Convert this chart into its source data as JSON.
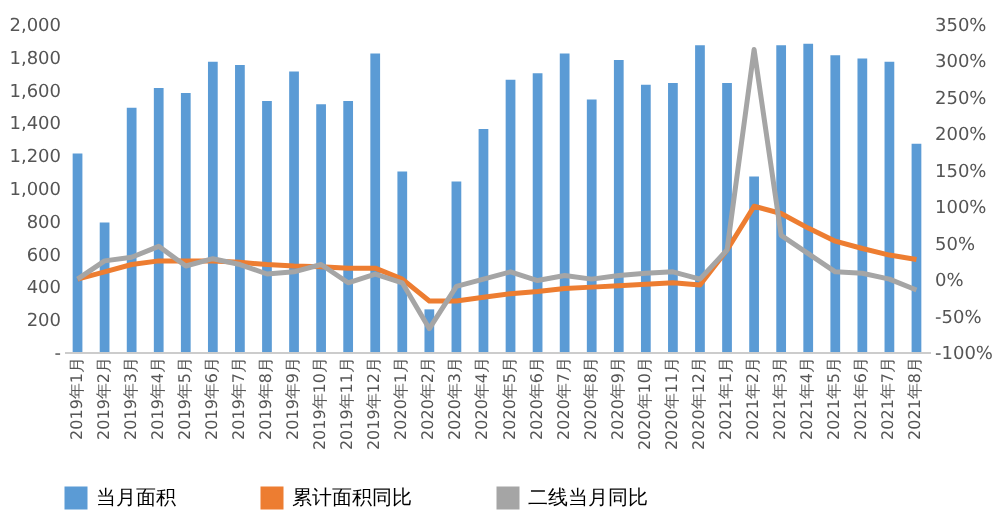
{
  "chart_data": {
    "type": "bar",
    "categories": [
      "2019年1月",
      "2019年2月",
      "2019年3月",
      "2019年4月",
      "2019年5月",
      "2019年6月",
      "2019年7月",
      "2019年8月",
      "2019年9月",
      "2019年10月",
      "2019年11月",
      "2019年12月",
      "2020年1月",
      "2020年2月",
      "2020年3月",
      "2020年4月",
      "2020年5月",
      "2020年6月",
      "2020年7月",
      "2020年8月",
      "2020年9月",
      "2020年10月",
      "2020年11月",
      "2020年12月",
      "2021年1月",
      "2021年2月",
      "2021年3月",
      "2021年4月",
      "2021年5月",
      "2021年6月",
      "2021年7月",
      "2021年8月"
    ],
    "series": [
      {
        "name": "当月面积",
        "color": "#5b9bd5",
        "values": [
          1210,
          790,
          1490,
          1610,
          1580,
          1770,
          1750,
          1530,
          1710,
          1510,
          1530,
          1820,
          1100,
          260,
          1040,
          1360,
          1660,
          1700,
          1820,
          1540,
          1780,
          1630,
          1640,
          1870,
          1640,
          1070,
          1870,
          1880,
          1810,
          1790,
          1770,
          1270
        ]
      },
      {
        "name": "累计面积同比",
        "type": "line",
        "axis": "y2",
        "color": "#ed7d31",
        "values": [
          0,
          10,
          20,
          25,
          25,
          25,
          23,
          20,
          18,
          17,
          15,
          15,
          0,
          -30,
          -30,
          -25,
          -20,
          -17,
          -13,
          -11,
          -9,
          -7,
          -5,
          -8,
          40,
          100,
          90,
          70,
          52,
          42,
          33,
          27
        ]
      },
      {
        "name": "二线当月同比",
        "type": "line",
        "axis": "y2",
        "color": "#a5a5a5",
        "values": [
          0,
          25,
          30,
          45,
          18,
          28,
          20,
          7,
          10,
          20,
          -5,
          7,
          -5,
          -68,
          -10,
          0,
          10,
          -2,
          5,
          0,
          5,
          8,
          10,
          0,
          40,
          315,
          60,
          35,
          10,
          8,
          0,
          -15
        ]
      }
    ],
    "ylim": [
      0,
      2000
    ],
    "yticks": [
      {
        "value": 0,
        "label": "-"
      },
      200,
      400,
      600,
      800,
      {
        "value": 1000,
        "label": "1,000"
      },
      {
        "value": 1200,
        "label": "1,200"
      },
      {
        "value": 1400,
        "label": "1,400"
      },
      {
        "value": 1600,
        "label": "1,600"
      },
      {
        "value": 1800,
        "label": "1,800"
      },
      {
        "value": 2000,
        "label": "2,000"
      }
    ],
    "y2lim": [
      -100,
      350
    ],
    "y2ticks": [
      {
        "value": -100,
        "label": "-100%"
      },
      {
        "value": -50,
        "label": "-50%"
      },
      {
        "value": 0,
        "label": "0%"
      },
      {
        "value": 50,
        "label": "50%"
      },
      {
        "value": 100,
        "label": "100%"
      },
      {
        "value": 150,
        "label": "150%"
      },
      {
        "value": 200,
        "label": "200%"
      },
      {
        "value": 250,
        "label": "250%"
      },
      {
        "value": 300,
        "label": "300%"
      },
      {
        "value": 350,
        "label": "350%"
      }
    ],
    "legend": "bottom",
    "line_style": "solid",
    "marker": "none"
  }
}
